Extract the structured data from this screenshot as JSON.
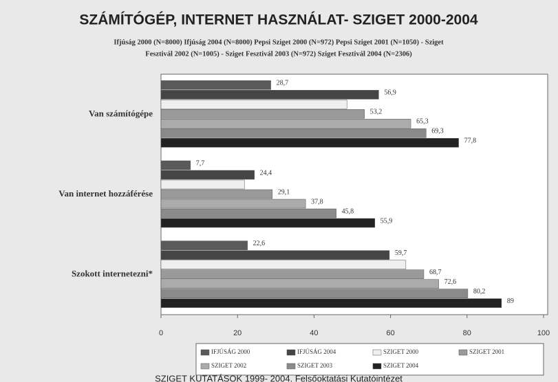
{
  "chart_data": {
    "type": "barh",
    "title": "SZÁMÍTÓGÉP, INTERNET HASZNÁLAT- SZIGET 2000-2004",
    "subtitle": [
      "Ifjúság 2000 (N=8000) Ifjúság 2004 (N=8000) Pepsi Sziget 2000 (N=972) Pepsi Sziget 2001 (N=1050) - Sziget",
      "Fesztivál 2002 (N=1005) - Sziget Fesztivál 2003  (N=972) Sziget Fesztivál 2004 (N=2306)"
    ],
    "footer": "SZIGET KUTATÁSOK 1999- 2004. Felsőoktatási Kutatóintézet",
    "categories": [
      "Van számítógépe",
      "Van internet hozzáférése",
      "Szokott internetezni*"
    ],
    "series": [
      {
        "name": "IFJÚSÁG 2000",
        "color": "#5a5a5a",
        "values": [
          28.7,
          7.7,
          22.6
        ],
        "value_labels": [
          "28,7",
          "7,7",
          "22,6"
        ]
      },
      {
        "name": "IFJÚSÁG 2004",
        "color": "#454545",
        "values": [
          56.9,
          24.4,
          59.7
        ],
        "value_labels": [
          "56,9",
          "24,4",
          "59,7"
        ]
      },
      {
        "name": "SZIGET 2000",
        "color": "#efefef",
        "values": [
          48.6,
          21.8,
          64
        ],
        "value_labels": [
          null,
          null,
          null
        ]
      },
      {
        "name": "SZIGET 2001",
        "color": "#9a9a9a",
        "values": [
          53.2,
          29.1,
          68.7
        ],
        "value_labels": [
          "53,2",
          "29,1",
          "68,7"
        ]
      },
      {
        "name": "SZIGET 2002",
        "color": "#ababab",
        "values": [
          65.3,
          37.8,
          72.6
        ],
        "value_labels": [
          "65,3",
          "37,8",
          "72,6"
        ]
      },
      {
        "name": "SZIGET 2003",
        "color": "#8a8a8a",
        "values": [
          69.3,
          45.8,
          80.2
        ],
        "value_labels": [
          "69,3",
          "45,8",
          "80,2"
        ]
      },
      {
        "name": "SZIGET 2004",
        "color": "#222222",
        "values": [
          77.8,
          55.9,
          89
        ],
        "value_labels": [
          "77,8",
          "55,9",
          "89"
        ]
      }
    ],
    "xlim": [
      0,
      100
    ],
    "xticks": [
      0,
      20,
      40,
      60,
      80,
      100
    ],
    "grid": false
  }
}
